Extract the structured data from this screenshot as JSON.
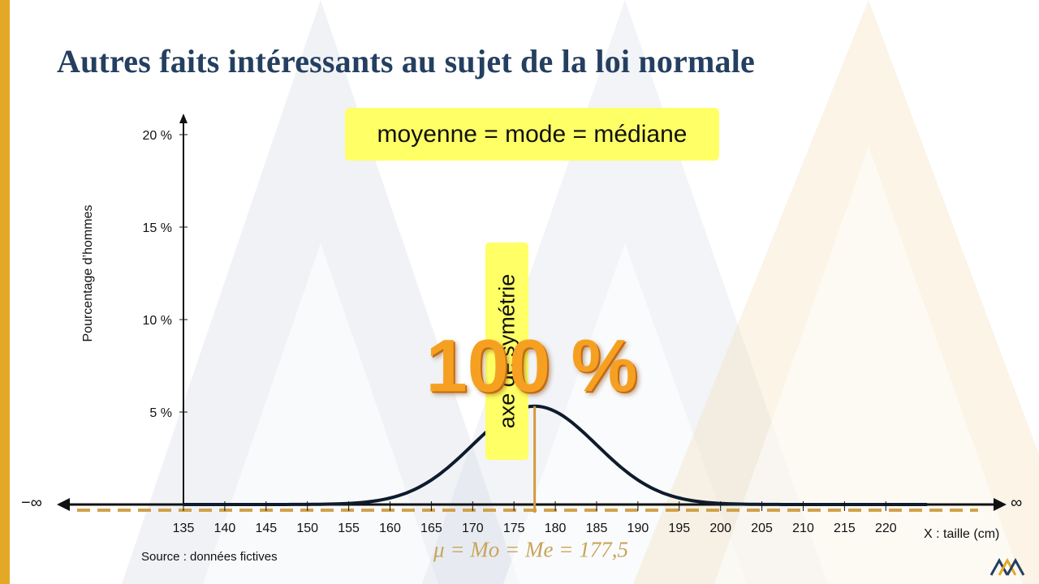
{
  "slide": {
    "title": "Autres faits intéressants au sujet de la loi normale",
    "equality_label": "moyenne = mode = médiane",
    "symmetry_label": "axe de symétrie",
    "total_area_label": "100 %",
    "formula": "μ = Mo = Me = 177,5",
    "source": "Source : données fictives"
  },
  "chart_data": {
    "type": "line",
    "title": "",
    "xlabel": "X : taille (cm)",
    "ylabel": "Pourcentage d’hommes",
    "x_ticks": [
      135,
      140,
      145,
      150,
      155,
      160,
      165,
      170,
      175,
      180,
      185,
      190,
      195,
      200,
      205,
      210,
      215,
      220
    ],
    "y_ticks": [
      5,
      10,
      15,
      20
    ],
    "y_tick_labels": [
      "5 %",
      "10 %",
      "15 %",
      "20 %"
    ],
    "x_range": [
      130,
      225
    ],
    "ylim": [
      0,
      20
    ],
    "grid": false,
    "distribution": {
      "mean": 177.5,
      "sd": 7.5
    },
    "symmetry_axis_x": 177.5,
    "axis_end_labels": {
      "left": "−∞",
      "right": "∞"
    },
    "colors": {
      "curve": "#0f1b2d",
      "symmetry_line": "#d49a3a",
      "dashed_baseline": "#d1a24c",
      "title": "#243f60",
      "highlight": "#ffff66",
      "area_text": "#f6a021"
    }
  }
}
